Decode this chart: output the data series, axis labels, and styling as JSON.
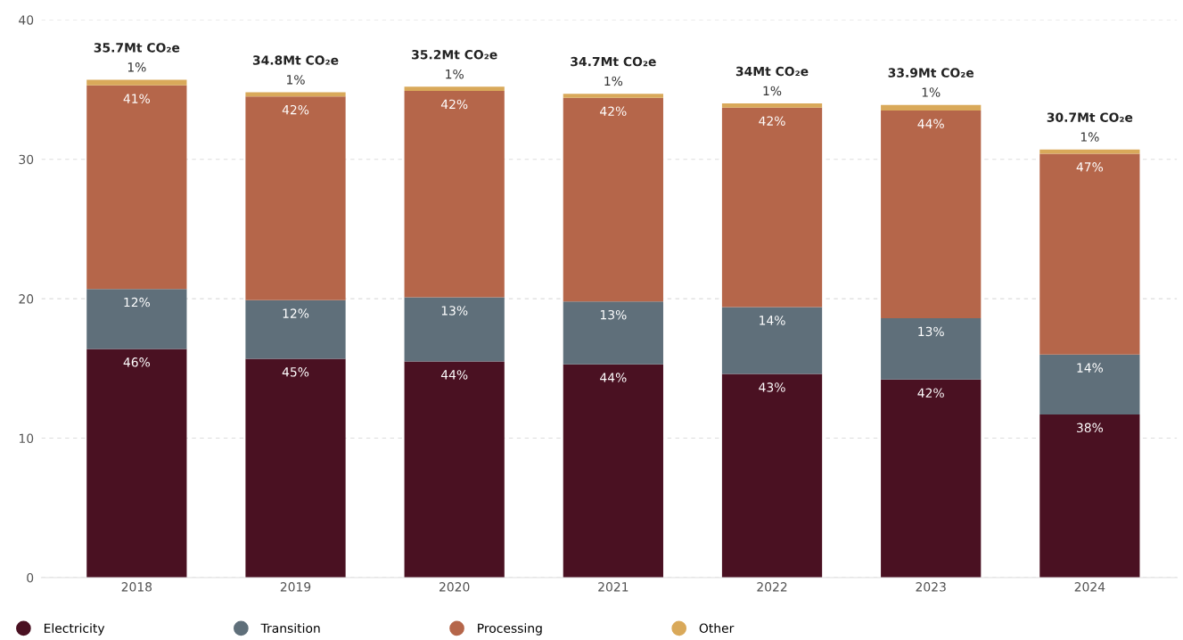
{
  "chart_data": {
    "type": "bar",
    "stacked": true,
    "categories": [
      "2018",
      "2019",
      "2020",
      "2021",
      "2022",
      "2023",
      "2024"
    ],
    "series": [
      {
        "name": "Electricity",
        "color": "#4a1122",
        "values": [
          16.4,
          15.7,
          15.5,
          15.3,
          14.6,
          14.2,
          11.7
        ]
      },
      {
        "name": "Transition",
        "color": "#5f6f7a",
        "values": [
          4.3,
          4.2,
          4.6,
          4.5,
          4.8,
          4.4,
          4.3
        ]
      },
      {
        "name": "Processing",
        "color": "#b5664a",
        "values": [
          14.6,
          14.6,
          14.8,
          14.6,
          14.3,
          14.9,
          14.4
        ]
      },
      {
        "name": "Other",
        "color": "#d9a95a",
        "values": [
          0.4,
          0.3,
          0.3,
          0.3,
          0.3,
          0.4,
          0.3
        ]
      }
    ],
    "totals": [
      "35.7Mt CO₂e",
      "34.8Mt CO₂e",
      "35.2Mt CO₂e",
      "34.7Mt CO₂e",
      "34Mt CO₂e",
      "33.9Mt CO₂e",
      "30.7Mt CO₂e"
    ],
    "annotations": [
      {
        "text": "46%",
        "x": "2018",
        "y": 16.4
      },
      {
        "text": "45%",
        "x": "2019",
        "y": 15.7
      },
      {
        "text": "44%",
        "x": "2020",
        "y": 15.5
      },
      {
        "text": "44%",
        "x": "2021",
        "y": 15.3
      },
      {
        "text": "43%",
        "x": "2022",
        "y": 14.6
      },
      {
        "text": "42%",
        "x": "2023",
        "y": 14.2
      },
      {
        "text": "38%",
        "x": "2024",
        "y": 11.7
      },
      {
        "text": "12%",
        "x": "2018",
        "y": 20.7
      },
      {
        "text": "12%",
        "x": "2019",
        "y": 19.9
      },
      {
        "text": "13%",
        "x": "2020",
        "y": 20.1
      },
      {
        "text": "13%",
        "x": "2021",
        "y": 19.8
      },
      {
        "text": "14%",
        "x": "2022",
        "y": 19.4
      },
      {
        "text": "13%",
        "x": "2023",
        "y": 18.6
      },
      {
        "text": "14%",
        "x": "2024",
        "y": 16.0
      },
      {
        "text": "41%",
        "x": "2018",
        "y": 35.3
      },
      {
        "text": "42%",
        "x": "2019",
        "y": 34.5
      },
      {
        "text": "42%",
        "x": "2020",
        "y": 34.9
      },
      {
        "text": "42%",
        "x": "2021",
        "y": 34.4
      },
      {
        "text": "42%",
        "x": "2022",
        "y": 33.7
      },
      {
        "text": "44%",
        "x": "2023",
        "y": 33.5
      },
      {
        "text": "47%",
        "x": "2024",
        "y": 30.4
      },
      {
        "text": "1%",
        "x": "2018",
        "y": 35.7
      },
      {
        "text": "1%",
        "x": "2019",
        "y": 34.8
      },
      {
        "text": "1%",
        "x": "2020",
        "y": 35.2
      },
      {
        "text": "1%",
        "x": "2021",
        "y": 34.7
      },
      {
        "text": "1%",
        "x": "2022",
        "y": 34.0
      },
      {
        "text": "1%",
        "x": "2023",
        "y": 33.9
      },
      {
        "text": "1%",
        "x": "2024",
        "y": 30.7
      }
    ],
    "ylim": [
      0,
      40
    ],
    "yticks": [
      0,
      10,
      20,
      30,
      40
    ],
    "grid": "y",
    "legend": "bottom left",
    "marker": "circle"
  }
}
